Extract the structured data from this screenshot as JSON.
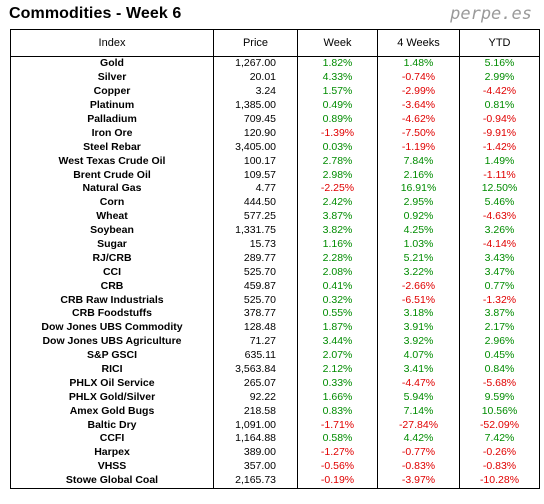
{
  "header": {
    "title": "Commodities - Week 6",
    "brand": "perpe.es"
  },
  "columns": {
    "index": "Index",
    "price": "Price",
    "week": "Week",
    "four_weeks": "4 Weeks",
    "ytd": "YTD"
  },
  "colors": {
    "positive": "#008c00",
    "negative": "#e00000"
  },
  "rows": [
    {
      "name": "Gold",
      "price": "1,267.00",
      "week": "1.82%",
      "four_weeks": "1.48%",
      "ytd": "5.16%"
    },
    {
      "name": "Silver",
      "price": "20.01",
      "week": "4.33%",
      "four_weeks": "-0.74%",
      "ytd": "2.99%"
    },
    {
      "name": "Copper",
      "price": "3.24",
      "week": "1.57%",
      "four_weeks": "-2.99%",
      "ytd": "-4.42%"
    },
    {
      "name": "Platinum",
      "price": "1,385.00",
      "week": "0.49%",
      "four_weeks": "-3.64%",
      "ytd": "0.81%"
    },
    {
      "name": "Palladium",
      "price": "709.45",
      "week": "0.89%",
      "four_weeks": "-4.62%",
      "ytd": "-0.94%"
    },
    {
      "name": "Iron Ore",
      "price": "120.90",
      "week": "-1.39%",
      "four_weeks": "-7.50%",
      "ytd": "-9.91%"
    },
    {
      "name": "Steel Rebar",
      "price": "3,405.00",
      "week": "0.03%",
      "four_weeks": "-1.19%",
      "ytd": "-1.42%"
    },
    {
      "name": "West Texas Crude Oil",
      "price": "100.17",
      "week": "2.78%",
      "four_weeks": "7.84%",
      "ytd": "1.49%"
    },
    {
      "name": "Brent Crude Oil",
      "price": "109.57",
      "week": "2.98%",
      "four_weeks": "2.16%",
      "ytd": "-1.11%"
    },
    {
      "name": "Natural Gas",
      "price": "4.77",
      "week": "-2.25%",
      "four_weeks": "16.91%",
      "ytd": "12.50%"
    },
    {
      "name": "Corn",
      "price": "444.50",
      "week": "2.42%",
      "four_weeks": "2.95%",
      "ytd": "5.46%"
    },
    {
      "name": "Wheat",
      "price": "577.25",
      "week": "3.87%",
      "four_weeks": "0.92%",
      "ytd": "-4.63%"
    },
    {
      "name": "Soybean",
      "price": "1,331.75",
      "week": "3.82%",
      "four_weeks": "4.25%",
      "ytd": "3.26%"
    },
    {
      "name": "Sugar",
      "price": "15.73",
      "week": "1.16%",
      "four_weeks": "1.03%",
      "ytd": "-4.14%"
    },
    {
      "name": "RJ/CRB",
      "price": "289.77",
      "week": "2.28%",
      "four_weeks": "5.21%",
      "ytd": "3.43%"
    },
    {
      "name": "CCI",
      "price": "525.70",
      "week": "2.08%",
      "four_weeks": "3.22%",
      "ytd": "3.47%"
    },
    {
      "name": "CRB",
      "price": "459.87",
      "week": "0.41%",
      "four_weeks": "-2.66%",
      "ytd": "0.77%"
    },
    {
      "name": "CRB Raw Industrials",
      "price": "525.70",
      "week": "0.32%",
      "four_weeks": "-6.51%",
      "ytd": "-1.32%"
    },
    {
      "name": "CRB Foodstuffs",
      "price": "378.77",
      "week": "0.55%",
      "four_weeks": "3.18%",
      "ytd": "3.87%"
    },
    {
      "name": "Dow Jones UBS Commodity",
      "price": "128.48",
      "week": "1.87%",
      "four_weeks": "3.91%",
      "ytd": "2.17%"
    },
    {
      "name": "Dow Jones UBS Agriculture",
      "price": "71.27",
      "week": "3.44%",
      "four_weeks": "3.92%",
      "ytd": "2.96%"
    },
    {
      "name": "S&P GSCI",
      "price": "635.11",
      "week": "2.07%",
      "four_weeks": "4.07%",
      "ytd": "0.45%"
    },
    {
      "name": "RICI",
      "price": "3,563.84",
      "week": "2.12%",
      "four_weeks": "3.41%",
      "ytd": "0.84%"
    },
    {
      "name": "PHLX Oil Service",
      "price": "265.07",
      "week": "0.33%",
      "four_weeks": "-4.47%",
      "ytd": "-5.68%"
    },
    {
      "name": "PHLX Gold/Silver",
      "price": "92.22",
      "week": "1.66%",
      "four_weeks": "5.94%",
      "ytd": "9.59%"
    },
    {
      "name": "Amex Gold Bugs",
      "price": "218.58",
      "week": "0.83%",
      "four_weeks": "7.14%",
      "ytd": "10.56%"
    },
    {
      "name": "Baltic Dry",
      "price": "1,091.00",
      "week": "-1.71%",
      "four_weeks": "-27.84%",
      "ytd": "-52.09%"
    },
    {
      "name": "CCFI",
      "price": "1,164.88",
      "week": "0.58%",
      "four_weeks": "4.42%",
      "ytd": "7.42%"
    },
    {
      "name": "Harpex",
      "price": "389.00",
      "week": "-1.27%",
      "four_weeks": "-0.77%",
      "ytd": "-0.26%"
    },
    {
      "name": "VHSS",
      "price": "357.00",
      "week": "-0.56%",
      "four_weeks": "-0.83%",
      "ytd": "-0.83%"
    },
    {
      "name": "Stowe Global Coal",
      "price": "2,165.73",
      "week": "-0.19%",
      "four_weeks": "-3.97%",
      "ytd": "-10.28%"
    }
  ]
}
